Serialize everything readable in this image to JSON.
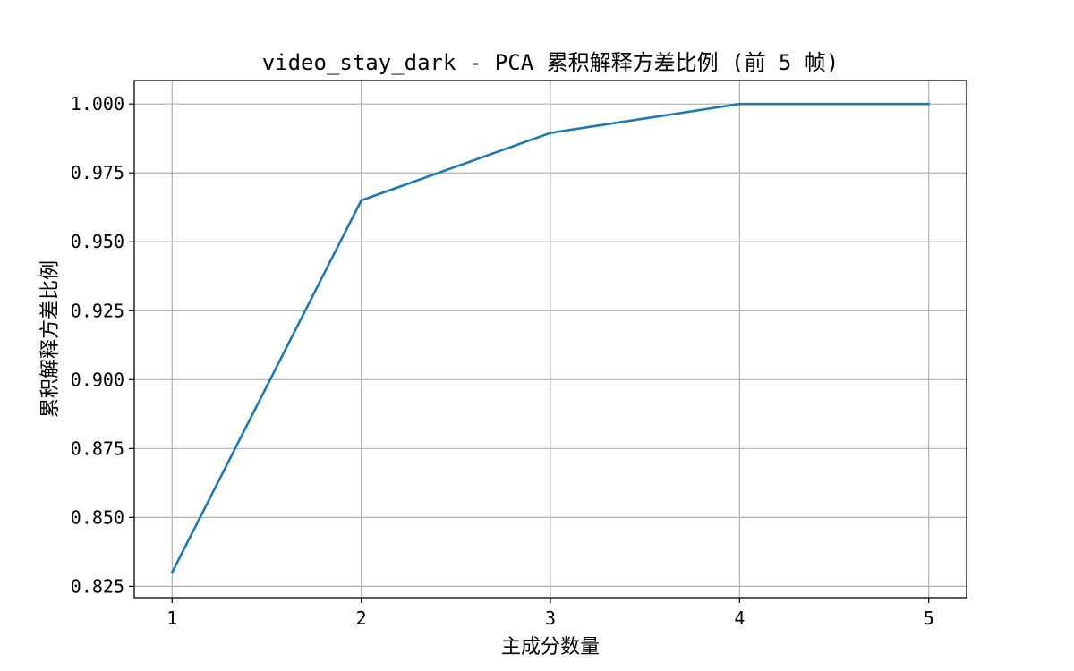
{
  "chart_data": {
    "type": "line",
    "title": "video_stay_dark - PCA 累积解释方差比例 (前 5 帧)",
    "xlabel": "主成分数量",
    "ylabel": "累积解释方差比例",
    "x": [
      1,
      2,
      3,
      4,
      5
    ],
    "series": [
      {
        "values": [
          0.83,
          0.965,
          0.9895,
          1.0,
          1.0
        ]
      }
    ],
    "xticks": [
      "1",
      "2",
      "3",
      "4",
      "5"
    ],
    "yticks": [
      "0.825",
      "0.850",
      "0.875",
      "0.900",
      "0.925",
      "0.950",
      "0.975",
      "1.000"
    ],
    "xlim": [
      0.8,
      5.2
    ],
    "ylim": [
      0.8209,
      1.0085
    ],
    "grid": true,
    "colors": {
      "line": "#1f77b4",
      "grid": "#b0b0b0",
      "axes": "#000000"
    }
  }
}
